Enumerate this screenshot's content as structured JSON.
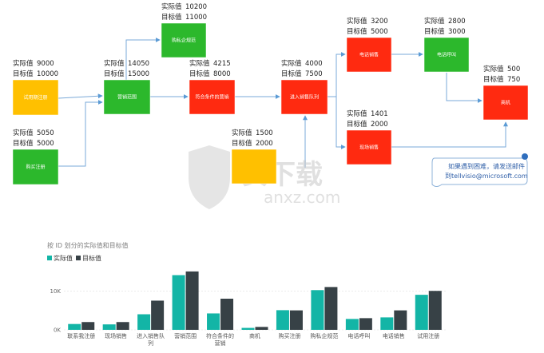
{
  "nodes": [
    {
      "id": "trial",
      "label": "试用期注册",
      "color": "#ffc000",
      "actual_label": "实际值",
      "actual": "9000",
      "target_label": "目标值",
      "target": "10000"
    },
    {
      "id": "buy",
      "label": "购买注册",
      "color": "#2cb82c",
      "actual_label": "实际值",
      "actual": "5050",
      "target_label": "目标值",
      "target": "5000"
    },
    {
      "id": "mkt",
      "label": "营销范围",
      "color": "#2cb82c",
      "actual_label": "实际值",
      "actual": "14050",
      "target_label": "目标值",
      "target": "15000"
    },
    {
      "id": "private",
      "label": "购私企规范",
      "color": "#2cb82c",
      "actual_label": "实际值",
      "actual": "10200",
      "target_label": "目标值",
      "target": "11000"
    },
    {
      "id": "qual",
      "label": "符合条件的营销",
      "color": "#ff2a10",
      "actual_label": "实际值",
      "actual": "4215",
      "target_label": "目标值",
      "target": "8000"
    },
    {
      "id": "queue",
      "label": "进入销售队列",
      "color": "#ff2a10",
      "actual_label": "实际值",
      "actual": "4000",
      "target_label": "目标值",
      "target": "7500"
    },
    {
      "id": "contact",
      "label": "",
      "color": "#ffc000",
      "actual_label": "实际值",
      "actual": "1500",
      "target_label": "目标值",
      "target": "2000"
    },
    {
      "id": "phone",
      "label": "电话销售",
      "color": "#ff2a10",
      "actual_label": "实际值",
      "actual": "3200",
      "target_label": "目标值",
      "target": "5000"
    },
    {
      "id": "field",
      "label": "现场销售",
      "color": "#ff2a10",
      "actual_label": "实际值",
      "actual": "1401",
      "target_label": "目标值",
      "target": "2000"
    },
    {
      "id": "call",
      "label": "电话呼叫",
      "color": "#2cb82c",
      "actual_label": "实际值",
      "actual": "2800",
      "target_label": "目标值",
      "target": "3000"
    },
    {
      "id": "opp",
      "label": "商机",
      "color": "#ff2a10",
      "actual_label": "实际值",
      "actual": "500",
      "target_label": "目标值",
      "target": "750"
    }
  ],
  "note": {
    "line1": "如果遇到困难，请发送邮件",
    "line2": "到tellvisio@microsoft.com"
  },
  "watermark": {
    "text": "安下载",
    "sub": "anxz.com"
  },
  "chart_data": {
    "type": "bar",
    "title": "按 ID 划分的实际值和目标值",
    "categories": [
      "联系我注册",
      "现场销售",
      "进入销售队列",
      "营销范围",
      "符合条件的营销",
      "商机",
      "购买注册",
      "购私企规范",
      "电话呼叫",
      "电话销售",
      "试用注册"
    ],
    "series": [
      {
        "name": "实际值",
        "color": "#13b5a6",
        "values": [
          1500,
          1401,
          4000,
          14050,
          4215,
          500,
          5050,
          10200,
          2800,
          3200,
          9000
        ]
      },
      {
        "name": "目标值",
        "color": "#374146",
        "values": [
          2000,
          2000,
          7500,
          15000,
          8000,
          750,
          5000,
          11000,
          3000,
          5000,
          10000
        ]
      }
    ],
    "yticks": [
      {
        "value": 0,
        "label": "0K"
      },
      {
        "value": 10000,
        "label": "10K"
      }
    ],
    "ylim": [
      0,
      16000
    ],
    "legend": "top-left",
    "grid": true
  }
}
